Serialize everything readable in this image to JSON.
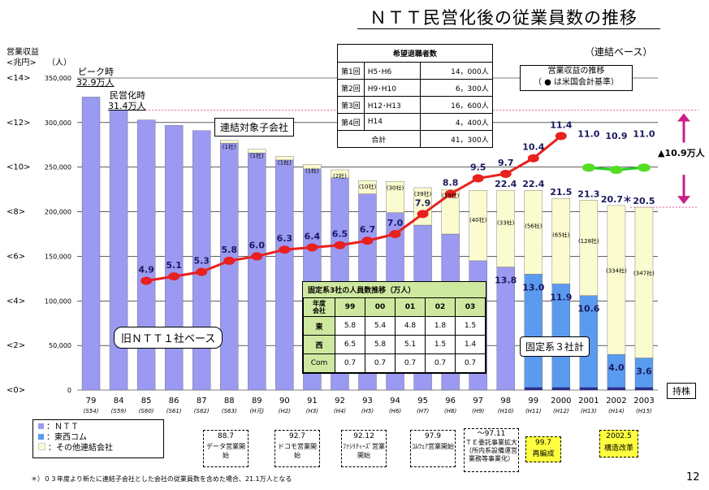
{
  "title": "ＮＴＴ民営化後の従業員数の推移",
  "page_number": "12",
  "basis_note": "（連結ベース）",
  "left_axis": {
    "title": "営業収益",
    "unit": "<兆円>",
    "ticks": [
      "<14>",
      "<12>",
      "<10>",
      "<8>",
      "<6>",
      "<4>",
      "<2>",
      "<0>"
    ]
  },
  "right_axis": {
    "unit": "（人）"
  },
  "peak_label": "ピーク時",
  "peak_value": "32.9万人",
  "privatization_label": "民営化時",
  "privatization_value": "31.4万人",
  "consolidated_label": "連結対象子会社",
  "old_ntt_label": "旧ＮＴＴ１社ベース",
  "fixed3_label": "固定系３社計",
  "holding_label": "持株",
  "reduction_label": "▲10.9万人",
  "legend": [
    {
      "label": "：ＮＴＴ",
      "color": "#9a9af2"
    },
    {
      "label": "：東西コム",
      "color": "#5b9bef"
    },
    {
      "label": "：その他連結会社",
      "color": "#fbfbd0"
    }
  ],
  "footnote": "＊）０３年度より新たに連結子会社とした会社の従業員数を含めた場合、21.1万人となる",
  "retirement_table": {
    "title": "希望退職者数",
    "rows": [
      {
        "round": "第1回",
        "period": "H5･H6",
        "count": "14，000人"
      },
      {
        "round": "第2回",
        "period": "H9･H10",
        "count": "6，300人"
      },
      {
        "round": "第3回",
        "period": "H12･H13",
        "count": "16，600人"
      },
      {
        "round": "第4回",
        "period": "H14",
        "count": "4，400人"
      }
    ],
    "total_label": "合計",
    "total": "41，300人"
  },
  "revenue_legend": {
    "title": "営業収益の推移",
    "note": "（ ● は米国会計基準）"
  },
  "fixed_table": {
    "title": "固定系3社の人員数推移（万人）",
    "header_top": "年度",
    "header_bottom": "会社",
    "years": [
      "99",
      "00",
      "01",
      "02",
      "03"
    ],
    "rows": [
      {
        "company": "東",
        "values": [
          "5.8",
          "5.4",
          "4.8",
          "1.8",
          "1.5"
        ]
      },
      {
        "company": "西",
        "values": [
          "6.5",
          "5.8",
          "5.1",
          "1.5",
          "1.4"
        ]
      },
      {
        "company": "Com",
        "values": [
          "0.7",
          "0.7",
          "0.7",
          "0.7",
          "0.7"
        ]
      }
    ]
  },
  "events": [
    {
      "date": "88.7",
      "desc": "データ営業開始"
    },
    {
      "date": "92.7",
      "desc": "ドコモ営業開始"
    },
    {
      "date": "92.12",
      "desc": "ﾌｧｼﾘﾃｨｰｽﾞ営業開始"
    },
    {
      "date": "97.9",
      "desc": "ｺﾑｳｪｱ営業開始"
    },
    {
      "date": "～97.11",
      "desc": "ＴＥ委託事業拡大（所内系設備運営業務等事業化）"
    },
    {
      "date": "99.7",
      "desc": "再編成"
    },
    {
      "date": "2002.5",
      "desc": "構造改革"
    }
  ],
  "chart_data": {
    "type": "bar",
    "title": "ＮＴＴ民営化後の従業員数の推移",
    "categories": [
      "79",
      "84",
      "85",
      "86",
      "87",
      "88",
      "89",
      "90",
      "91",
      "92",
      "93",
      "94",
      "95",
      "96",
      "97",
      "98",
      "99",
      "2000",
      "2001",
      "2002",
      "2003"
    ],
    "sub_labels": [
      "(S54)",
      "(S59)",
      "(S60)",
      "(S61)",
      "(S62)",
      "(S63)",
      "(H元)",
      "(H2)",
      "(H3)",
      "(H4)",
      "(H5)",
      "(H6)",
      "(H7)",
      "(H8)",
      "(H9)",
      "(H10)",
      "(H11)",
      "(H12)",
      "(H13)",
      "(H14)",
      "(H15)"
    ],
    "y_ticks": [
      "350,000",
      "300,000",
      "250,000",
      "200,000",
      "150,000",
      "100,000",
      "50,000",
      "0"
    ],
    "ylim": [
      0,
      350000
    ],
    "series": [
      {
        "name": "ＮＴＴ",
        "color": "#9a9af2",
        "values": [
          328700,
          314000,
          303000,
          297000,
          291000,
          277000,
          266000,
          258000,
          248000,
          238000,
          220000,
          199000,
          185000,
          175000,
          145000,
          138000,
          0,
          0,
          0,
          0,
          0
        ]
      },
      {
        "name": "東西コム",
        "color": "#5b9bef",
        "values": [
          0,
          0,
          0,
          0,
          0,
          0,
          0,
          0,
          0,
          0,
          0,
          0,
          0,
          0,
          0,
          0,
          130000,
          119000,
          106000,
          40000,
          36000
        ]
      },
      {
        "name": "その他連結会社",
        "color": "#fbfbd0",
        "values": [
          0,
          0,
          0,
          0,
          0,
          3000,
          4000,
          4000,
          5000,
          9000,
          15000,
          35000,
          42000,
          50000,
          79000,
          86000,
          94000,
          96000,
          107000,
          167000,
          169000
        ]
      }
    ],
    "total_labels": [
      "",
      "",
      "",
      "",
      "",
      "",
      "",
      "",
      "",
      "",
      "",
      "",
      "",
      "",
      "",
      "22.4",
      "22.4",
      "21.5",
      "21.3",
      "20.7＊",
      "20.5"
    ],
    "inner_labels": [
      "",
      "",
      "",
      "",
      "",
      "",
      "",
      "",
      "",
      "",
      "",
      "",
      "",
      "",
      "",
      "13.8",
      "13.0",
      "11.9",
      "10.6",
      "4.0",
      "3.6"
    ],
    "subsidiary_counts": [
      "",
      "",
      "",
      "",
      "",
      "(1社)",
      "(1社)",
      "(1社)",
      "(1社)",
      "(2社)",
      "(10社)",
      "(30社)",
      "(39社)",
      "(39社)",
      "(40社)",
      "(33社)",
      "(56社)",
      "(65社)",
      "(128社)",
      "(334社)",
      "(347社)"
    ],
    "holding": [
      0,
      0,
      0,
      0,
      0,
      0,
      0,
      0,
      0,
      0,
      0,
      0,
      0,
      0,
      0,
      0,
      3000,
      3000,
      3000,
      3000,
      3000
    ],
    "revenue": {
      "name": "営業収益",
      "unit": "兆円",
      "ylim": [
        0,
        14
      ],
      "values": [
        null,
        null,
        4.9,
        5.1,
        5.3,
        5.8,
        6.0,
        6.3,
        6.4,
        6.5,
        6.7,
        7.0,
        7.9,
        8.8,
        9.5,
        9.7,
        10.4,
        11.4,
        null,
        null,
        null
      ],
      "us_gaap": [
        null,
        null,
        null,
        null,
        null,
        null,
        null,
        null,
        null,
        null,
        null,
        null,
        null,
        null,
        null,
        null,
        null,
        null,
        11.0,
        10.9,
        11.0
      ],
      "labels": [
        "",
        "",
        "4.9",
        "5.1",
        "5.3",
        "5.8",
        "6.0",
        "6.3",
        "6.4",
        "6.5",
        "6.7",
        "7.0",
        "7.9",
        "8.8",
        "9.5",
        "9.7",
        "10.4",
        "11.4",
        "11.0",
        "10.9",
        "11.0"
      ]
    }
  }
}
